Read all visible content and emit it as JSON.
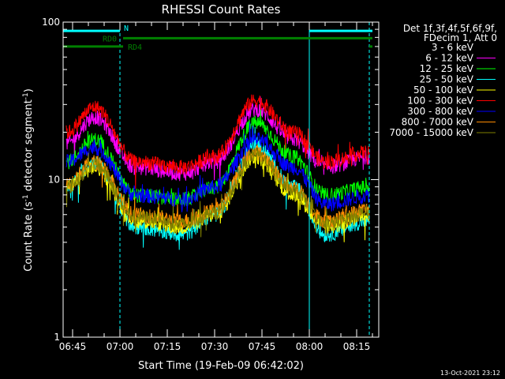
{
  "chart_data": {
    "type": "line",
    "title": "RHESSI Count Rates",
    "xlabel": "Start Time (19-Feb-09 06:42:02)",
    "ylabel_main": "Count Rate (s",
    "ylabel_sup": "-1",
    "ylabel_mid": " detector segment",
    "ylabel_sup2": "-1",
    "ylabel_end": ")",
    "yscale": "log",
    "ylim": [
      1,
      100
    ],
    "xlim": [
      "06:42",
      "08:22"
    ],
    "x_ticks": [
      "06:45",
      "07:00",
      "07:15",
      "07:30",
      "07:45",
      "08:00",
      "08:15"
    ],
    "y_ticks": [
      "1",
      "10",
      "100"
    ],
    "legend_header": [
      "Det 1f,3f,4f,5f,6f,9f,",
      "FDecim 1, Att 0"
    ],
    "series": [
      {
        "name": "3 - 6 keV",
        "color": "#000000",
        "points": [
          [
            "06:43",
            9
          ],
          [
            "06:52",
            13
          ],
          [
            "07:05",
            6
          ],
          [
            "07:20",
            6
          ],
          [
            "07:30",
            7
          ],
          [
            "07:43",
            14
          ],
          [
            "07:55",
            9
          ],
          [
            "08:05",
            5.5
          ],
          [
            "08:19",
            6.5
          ]
        ]
      },
      {
        "name": "6 - 12 keV",
        "color": "#ff00ff",
        "points": [
          [
            "06:43",
            17
          ],
          [
            "06:52",
            25
          ],
          [
            "07:05",
            12
          ],
          [
            "07:20",
            11
          ],
          [
            "07:30",
            13
          ],
          [
            "07:43",
            28
          ],
          [
            "07:55",
            18
          ],
          [
            "08:05",
            12
          ],
          [
            "08:19",
            14
          ]
        ]
      },
      {
        "name": "12 - 25 keV",
        "color": "#00ff00",
        "points": [
          [
            "06:43",
            13
          ],
          [
            "06:52",
            18
          ],
          [
            "07:05",
            8
          ],
          [
            "07:20",
            7.5
          ],
          [
            "07:30",
            9
          ],
          [
            "07:43",
            23
          ],
          [
            "07:55",
            14
          ],
          [
            "08:05",
            8
          ],
          [
            "08:19",
            9
          ]
        ]
      },
      {
        "name": "25 - 50 keV",
        "color": "#00ffff",
        "points": [
          [
            "06:43",
            9
          ],
          [
            "06:52",
            13
          ],
          [
            "07:05",
            5
          ],
          [
            "07:20",
            4.5
          ],
          [
            "07:30",
            6
          ],
          [
            "07:43",
            17
          ],
          [
            "07:55",
            9
          ],
          [
            "08:05",
            4.5
          ],
          [
            "08:19",
            5.5
          ]
        ]
      },
      {
        "name": "50 - 100 keV",
        "color": "#ffff00",
        "points": [
          [
            "06:43",
            9
          ],
          [
            "06:52",
            12
          ],
          [
            "07:05",
            5.5
          ],
          [
            "07:20",
            5
          ],
          [
            "07:30",
            6
          ],
          [
            "07:43",
            14
          ],
          [
            "07:55",
            8
          ],
          [
            "08:05",
            5
          ],
          [
            "08:19",
            6
          ]
        ]
      },
      {
        "name": "100 - 300 keV",
        "color": "#ff0000",
        "points": [
          [
            "06:43",
            20
          ],
          [
            "06:52",
            29
          ],
          [
            "07:05",
            13
          ],
          [
            "07:20",
            12
          ],
          [
            "07:30",
            14
          ],
          [
            "07:43",
            32
          ],
          [
            "07:55",
            20
          ],
          [
            "08:05",
            13
          ],
          [
            "08:19",
            15
          ]
        ]
      },
      {
        "name": "300 - 800 keV",
        "color": "#0000ff",
        "points": [
          [
            "06:43",
            13
          ],
          [
            "06:52",
            16
          ],
          [
            "07:05",
            8
          ],
          [
            "07:20",
            7.5
          ],
          [
            "07:30",
            9
          ],
          [
            "07:43",
            18
          ],
          [
            "07:55",
            12
          ],
          [
            "08:05",
            7
          ],
          [
            "08:19",
            8
          ]
        ]
      },
      {
        "name": "800 - 7000 keV",
        "color": "#ff8c00",
        "points": [
          [
            "06:43",
            9.5
          ],
          [
            "06:52",
            13
          ],
          [
            "07:05",
            6
          ],
          [
            "07:20",
            5.5
          ],
          [
            "07:30",
            6.5
          ],
          [
            "07:43",
            15
          ],
          [
            "07:55",
            9
          ],
          [
            "08:05",
            5.5
          ],
          [
            "08:19",
            6.5
          ]
        ]
      },
      {
        "name": "7000 - 15000 keV",
        "color": "#808000",
        "points": [
          [
            "06:43",
            9
          ],
          [
            "06:52",
            12.5
          ],
          [
            "07:05",
            5.8
          ],
          [
            "07:20",
            5.2
          ],
          [
            "07:30",
            6.2
          ],
          [
            "07:43",
            14.5
          ],
          [
            "07:55",
            8.5
          ],
          [
            "08:05",
            5.2
          ],
          [
            "08:19",
            6.2
          ]
        ]
      }
    ],
    "flag_bars": [
      {
        "label": "N",
        "color": "#00ffff",
        "y": 88,
        "segments": [
          [
            "06:42",
            "07:00"
          ],
          [
            "08:00",
            "08:20"
          ]
        ]
      },
      {
        "label": "RD0",
        "color": "#008000",
        "y": 79,
        "segments": [
          [
            "07:01",
            "08:20"
          ]
        ]
      },
      {
        "label": "RD4",
        "color": "#008000",
        "y": 70,
        "segments": [
          [
            "06:42",
            "07:01"
          ],
          [
            "08:19",
            "08:20"
          ]
        ]
      }
    ],
    "vlines_solid": [
      "06:42",
      "08:00"
    ],
    "vlines_dashed": [
      "07:00",
      "08:19"
    ],
    "vline_color": "#00ffff",
    "grid": false,
    "legend_position": "right"
  },
  "footer": {
    "timestamp": "13-Oct-2021 23:12"
  }
}
